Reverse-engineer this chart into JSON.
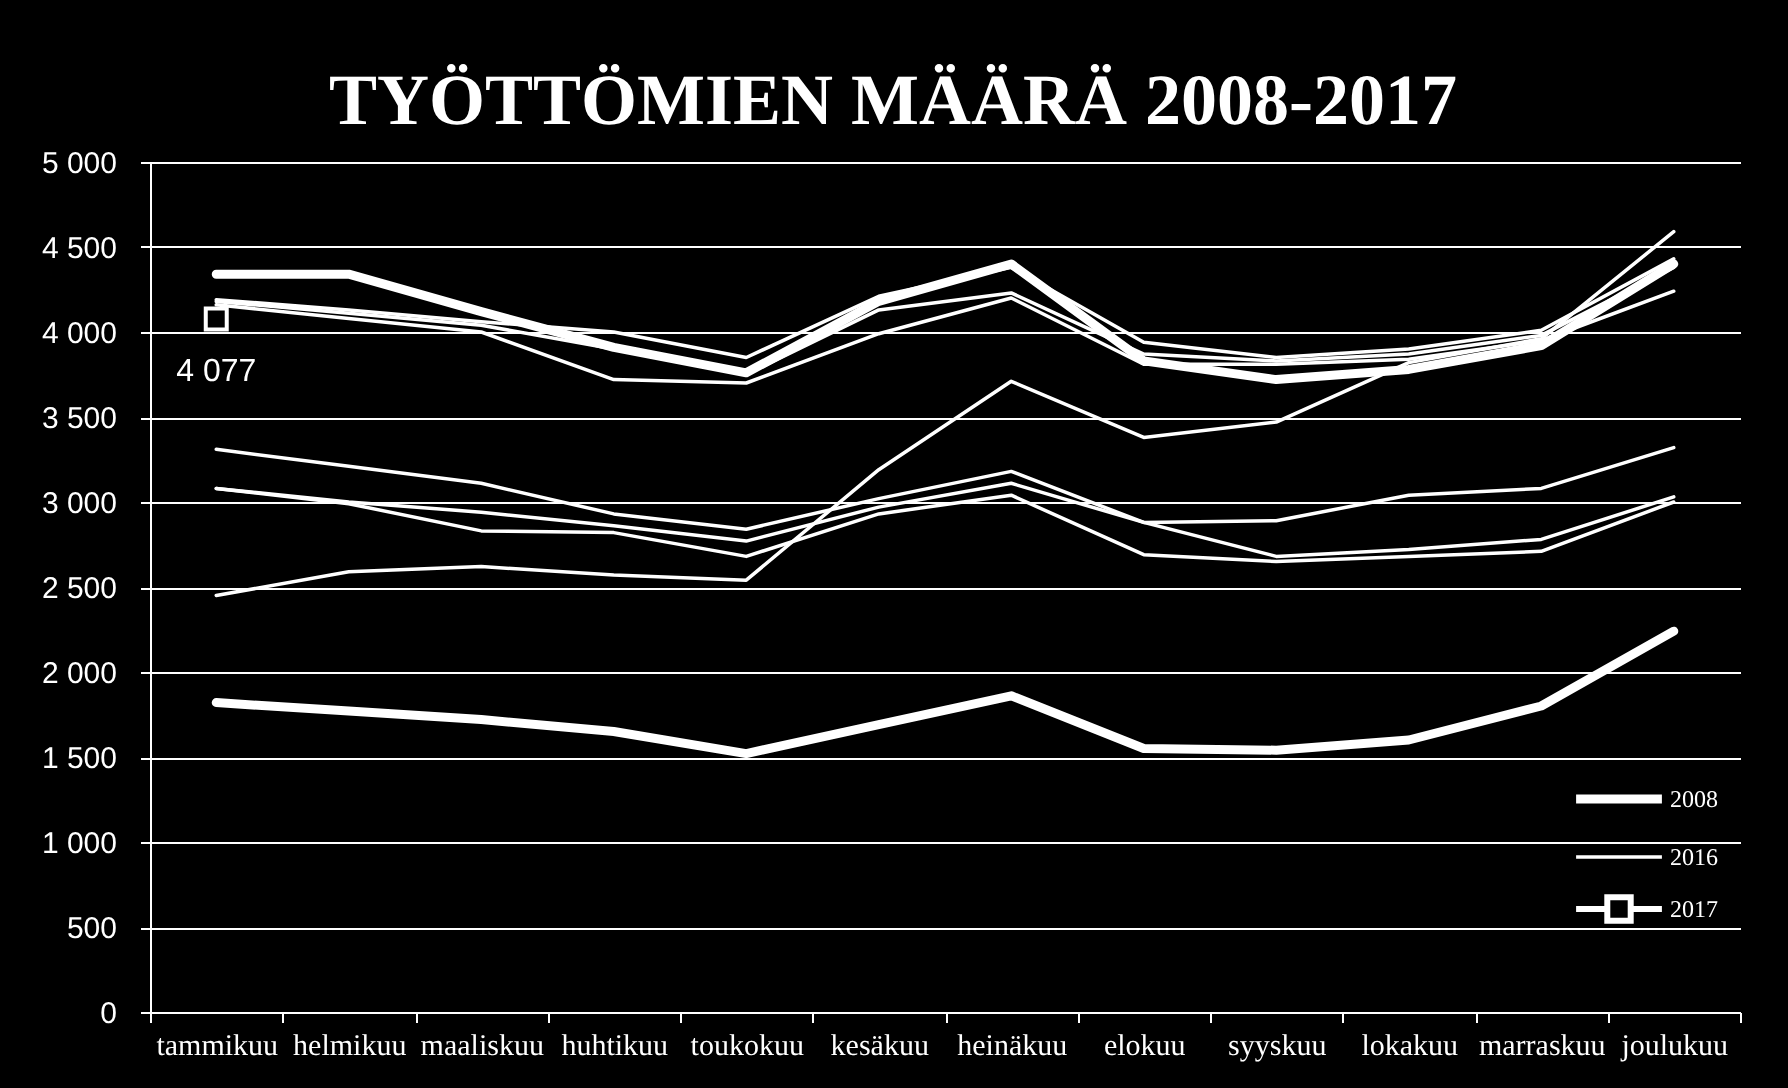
{
  "chart_data": {
    "type": "line",
    "title": "TYÖTTÖMIEN MÄÄRÄ 2008-2017",
    "categories": [
      "tammikuu",
      "helmikuu",
      "maaliskuu",
      "huhtikuu",
      "toukokuu",
      "kesäkuu",
      "heinäkuu",
      "elokuu",
      "syyskuu",
      "lokakuu",
      "marraskuu",
      "joulukuu"
    ],
    "ylim": [
      0,
      5000
    ],
    "yticks": [
      0,
      500,
      {
        "value": 1000,
        "label": "1 000"
      },
      {
        "value": 1500,
        "label": "1 500"
      },
      {
        "value": 2000,
        "label": "2 000"
      },
      {
        "value": 2500,
        "label": "2 500"
      },
      {
        "value": 3000,
        "label": "3 000"
      },
      {
        "value": 3500,
        "label": "3 500"
      },
      {
        "value": 4000,
        "label": "4 000"
      },
      {
        "value": 4500,
        "label": "4 500"
      },
      {
        "value": 5000,
        "label": "5 000"
      }
    ],
    "grid": "y",
    "legend": "bottom right",
    "series": [
      {
        "name": "2008",
        "color": "#ffffff",
        "values": [
          1820,
          1770,
          1720,
          1650,
          1520,
          1690,
          1860,
          1550,
          1540,
          1600,
          1800,
          2240
        ]
      },
      {
        "color": "#ffffff",
        "values": [
          3310,
          3210,
          3110,
          2930,
          2840,
          3020,
          3180,
          2880,
          2680,
          2720,
          2780,
          3030
        ]
      },
      {
        "color": "#ffffff",
        "values": [
          3080,
          3000,
          2940,
          2860,
          2770,
          2970,
          3110,
          2880,
          2890,
          3040,
          3080,
          3320
        ]
      },
      {
        "color": "#ffffff",
        "values": [
          3080,
          2990,
          2830,
          2820,
          2680,
          2930,
          3040,
          2690,
          2650,
          2680,
          2710,
          3000
        ]
      },
      {
        "color": "#ffffff",
        "values": [
          2450,
          2590,
          2620,
          2570,
          2540,
          3190,
          3710,
          3380,
          3470,
          3820,
          3960,
          4590
        ]
      },
      {
        "color": "#ffffff",
        "values": [
          4340,
          4340,
          4120,
          3910,
          3760,
          4180,
          4400,
          3830,
          3720,
          3780,
          3920,
          4400
        ]
      },
      {
        "color": "#ffffff",
        "values": [
          4190,
          4130,
          4060,
          4000,
          3850,
          4210,
          4380,
          3940,
          3850,
          3900,
          4010,
          4430
        ]
      },
      {
        "color": "#ffffff",
        "values": [
          4180,
          4110,
          4040,
          3900,
          3750,
          4130,
          4230,
          3870,
          3830,
          3870,
          3980,
          4380
        ]
      },
      {
        "name": "2016",
        "color": "#ffffff",
        "values": [
          4160,
          4080,
          4000,
          3720,
          3700,
          3990,
          4200,
          3810,
          3810,
          3840,
          3950,
          4240
        ]
      },
      {
        "name": "2017",
        "color": "#ffffff",
        "marker": "square",
        "values": [
          4077,
          null,
          null,
          null,
          null,
          null,
          null,
          null,
          null,
          null,
          null,
          null
        ],
        "value_labels": [
          "4 077",
          null,
          null,
          null,
          null,
          null,
          null,
          null,
          null,
          null,
          null,
          null
        ]
      }
    ]
  }
}
